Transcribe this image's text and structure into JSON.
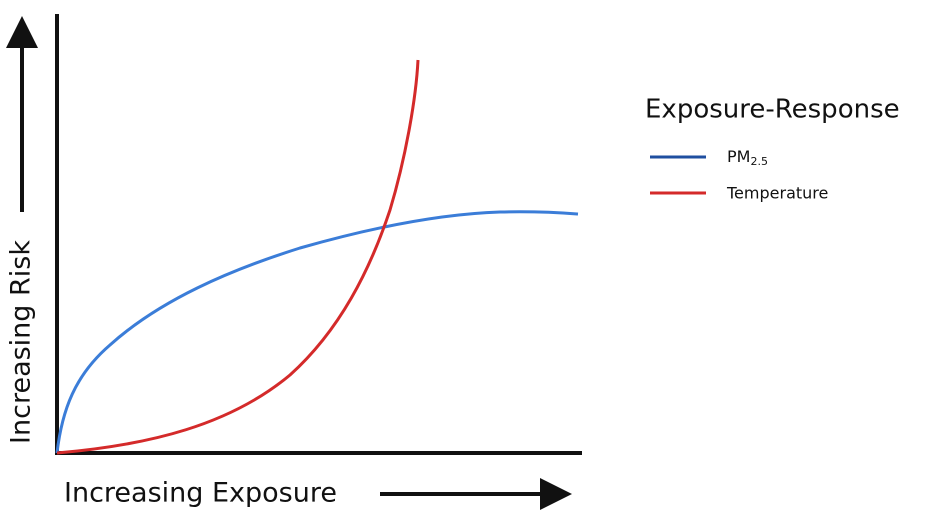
{
  "axes": {
    "y_label": "Increasing Risk",
    "x_label": "Increasing Exposure"
  },
  "legend": {
    "title": "Exposure-Response",
    "items": [
      {
        "label": "PM",
        "subscript": "2.5"
      },
      {
        "label": "Temperature"
      }
    ]
  }
}
